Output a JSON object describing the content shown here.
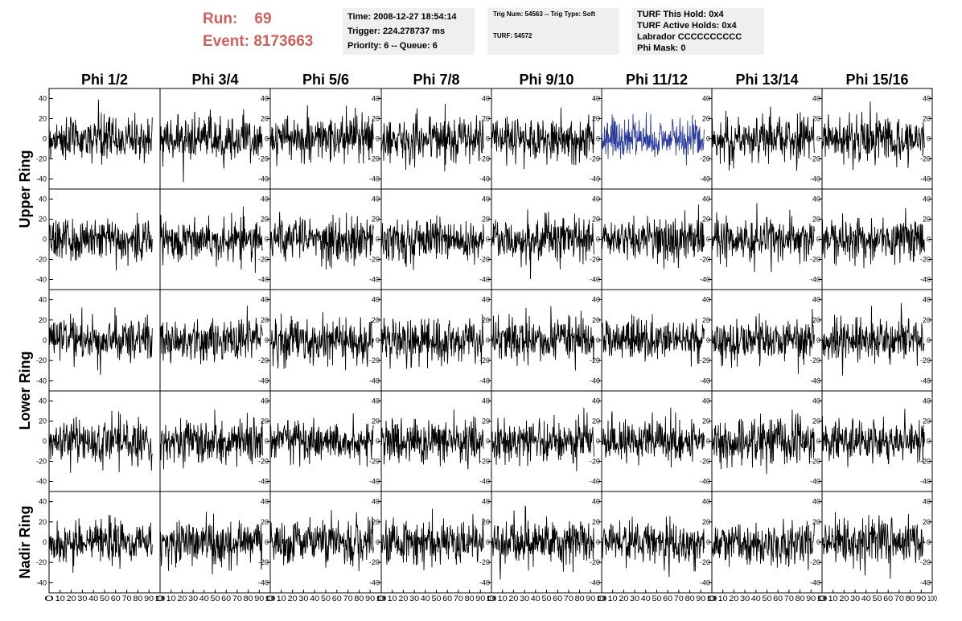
{
  "header": {
    "run_label": "Run:",
    "run_value": "69",
    "event_label": "Event:",
    "event_value": "8173663",
    "time": "Time: 2008-12-27 18:54:14",
    "trigger": "Trigger: 224.278737 ms",
    "priority": "Priority: 6 -- Queue: 6",
    "trig_num": "Trig Num: 54563 -- Trig Type: Soft",
    "turf": "TURF: 54572",
    "turf_this_hold": "TURF This Hold: 0x4",
    "turf_active_holds": "TURF Active Holds: 0x4",
    "labrador": "Labrador CCCCCCCCCC",
    "phi_mask": "Phi Mask: 0"
  },
  "chart_data": {
    "type": "line",
    "columns": [
      "Phi 1/2",
      "Phi 3/4",
      "Phi 5/6",
      "Phi 7/8",
      "Phi 9/10",
      "Phi 11/12",
      "Phi 13/14",
      "Phi 15/16"
    ],
    "rows": [
      "Upper Ring",
      "Lower Ring",
      "Nadir Ring"
    ],
    "xlim": [
      0,
      100
    ],
    "ylim": [
      -50,
      50
    ],
    "x_ticks": [
      0,
      10,
      20,
      30,
      40,
      50,
      60,
      70,
      80,
      90,
      100
    ],
    "y_ticks": [
      -40,
      -20,
      0,
      20,
      40
    ],
    "samples_per_trace": 256,
    "trace_x_range": [
      0,
      93
    ],
    "highlighted_panel": {
      "row": 0,
      "col": 5,
      "color": "#2c3c9c"
    },
    "trace_color": "#000000",
    "header_color": "#d0605a"
  }
}
